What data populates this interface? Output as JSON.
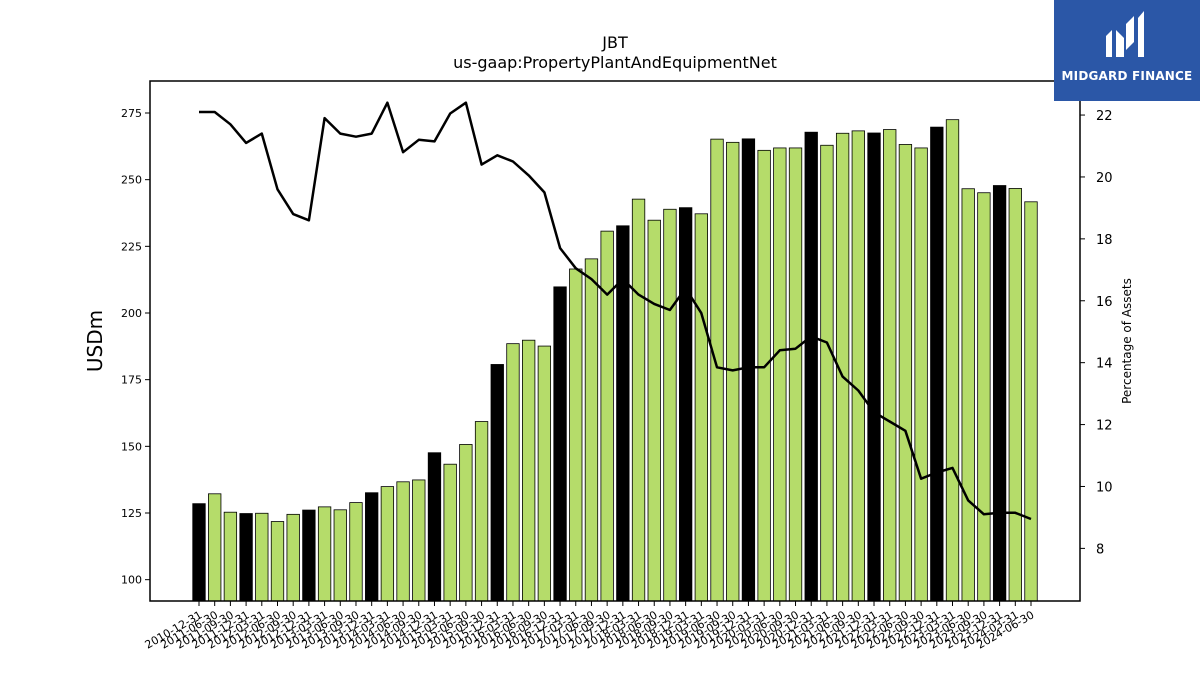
{
  "chart_data": {
    "type": "bar",
    "title": "JBT",
    "subtitle": "us-gaap:PropertyPlantAndEquipmentNet",
    "ylabel": "USDm",
    "y2label": "Percentage of Assets",
    "ylim": [
      92,
      287
    ],
    "y2lim": [
      6.3,
      23.1
    ],
    "yticks": [
      100,
      125,
      150,
      175,
      200,
      225,
      250,
      275
    ],
    "y2ticks": [
      8,
      10,
      12,
      14,
      16,
      18,
      20,
      22
    ],
    "colors": {
      "annual": "#000000",
      "quarter": "#b5dc6a",
      "line": "#000000"
    },
    "grid": false,
    "legend": "none",
    "categories": [
      "2010-12-31",
      "2011-06-30",
      "2011-09-30",
      "2011-12-31",
      "2012-03-31",
      "2012-06-30",
      "2012-09-30",
      "2012-12-31",
      "2013-03-31",
      "2013-06-30",
      "2013-09-30",
      "2013-12-31",
      "2014-03-31",
      "2014-06-30",
      "2014-09-30",
      "2014-12-31",
      "2015-03-31",
      "2015-06-30",
      "2015-09-30",
      "2015-12-31",
      "2016-03-31",
      "2016-06-30",
      "2016-09-30",
      "2016-12-31",
      "2017-03-31",
      "2017-06-30",
      "2017-09-30",
      "2017-12-31",
      "2018-03-31",
      "2018-06-30",
      "2018-09-30",
      "2018-12-31",
      "2019-03-31",
      "2019-06-30",
      "2019-09-30",
      "2019-12-31",
      "2020-03-31",
      "2020-06-30",
      "2020-09-30",
      "2020-12-31",
      "2021-03-31",
      "2021-06-30",
      "2021-09-30",
      "2021-12-31",
      "2022-03-31",
      "2022-06-30",
      "2022-09-30",
      "2022-12-31",
      "2023-03-31",
      "2023-06-30",
      "2023-09-30",
      "2023-12-31",
      "2024-03-31",
      "2024-06-30"
    ],
    "series": [
      {
        "kind": "bar",
        "axis": "left",
        "values": [
          128.5,
          132.2,
          125.3,
          124.8,
          124.9,
          121.8,
          124.5,
          126.1,
          127.3,
          126.2,
          128.9,
          132.6,
          134.9,
          136.7,
          137.4,
          147.6,
          143.3,
          150.7,
          159.3,
          180.7,
          188.5,
          189.8,
          187.6,
          209.8,
          216.5,
          220.3,
          230.7,
          232.7,
          242.7,
          234.8,
          238.9,
          239.5,
          237.2,
          265.2,
          264.0,
          265.3,
          261.0,
          261.9,
          261.9,
          267.8,
          262.9,
          267.4,
          268.3,
          267.5,
          268.8,
          263.2,
          261.9,
          269.7,
          272.5,
          246.6,
          245.1,
          247.8,
          246.7,
          241.7
        ],
        "annual": [
          true,
          false,
          false,
          true,
          false,
          false,
          false,
          true,
          false,
          false,
          false,
          true,
          false,
          false,
          false,
          true,
          false,
          false,
          false,
          true,
          false,
          false,
          false,
          true,
          false,
          false,
          false,
          true,
          false,
          false,
          false,
          true,
          false,
          false,
          false,
          true,
          false,
          false,
          false,
          true,
          false,
          false,
          false,
          true,
          false,
          false,
          false,
          true,
          false,
          false,
          false,
          true,
          false,
          false
        ]
      },
      {
        "kind": "line",
        "axis": "right",
        "values": [
          22.1,
          22.1,
          21.7,
          21.1,
          21.4,
          19.6,
          18.8,
          18.6,
          21.9,
          21.4,
          21.3,
          21.4,
          22.4,
          20.8,
          21.2,
          21.15,
          22.05,
          22.4,
          20.4,
          20.7,
          20.5,
          20.05,
          19.5,
          17.7,
          17.05,
          16.7,
          16.2,
          16.7,
          16.2,
          15.9,
          15.7,
          16.4,
          15.6,
          13.85,
          13.75,
          13.85,
          13.85,
          14.4,
          14.45,
          14.85,
          14.65,
          13.55,
          13.1,
          12.4,
          12.1,
          11.8,
          10.25,
          10.45,
          10.6,
          9.55,
          9.1,
          9.15,
          9.15,
          8.95
        ]
      }
    ]
  },
  "brand": {
    "name": "MIDGARD FINANCE",
    "icon": "midgard-logo-icon",
    "color": "#2b57a7"
  }
}
